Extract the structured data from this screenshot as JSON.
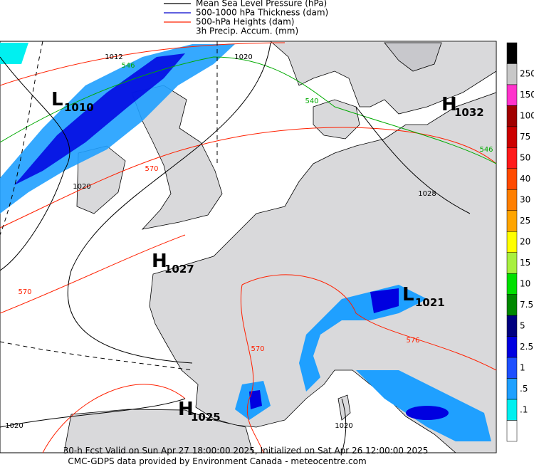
{
  "legend": [
    {
      "label": "Mean Sea Level Pressure (hPa)",
      "color": "#000000"
    },
    {
      "label": "500-1000 hPa Thickness (dam)",
      "color": "#0000cc"
    },
    {
      "label": "500-hPa Heights (dam)",
      "color": "#ff2000"
    },
    {
      "label": "3h Precip. Accum. (mm)"
    }
  ],
  "pressure_centers": [
    {
      "letter": "L",
      "value": "1010"
    },
    {
      "letter": "H",
      "value": "1032"
    },
    {
      "letter": "H",
      "value": "1027"
    },
    {
      "letter": "L",
      "value": "1021"
    },
    {
      "letter": "H",
      "value": "1025"
    }
  ],
  "contour_labels": [
    "1012",
    "546",
    "1020",
    "540",
    "546",
    "570",
    "1020",
    "1028",
    "570",
    "570",
    "576",
    "1020",
    "1020"
  ],
  "colorbar": {
    "top_color": "#000000",
    "labels": [
      "250",
      "150",
      "100",
      "75",
      "50",
      "40",
      "30",
      "25",
      "20",
      "15",
      "10",
      "7.5",
      "5",
      "2.5",
      "1",
      ".5",
      ".1"
    ],
    "colors": [
      "#c8c8c8",
      "#ff33cc",
      "#a00000",
      "#cc0000",
      "#ff1a1a",
      "#ff4a00",
      "#ff7f00",
      "#ffa500",
      "#ffff00",
      "#a8f040",
      "#00e000",
      "#008800",
      "#000080",
      "#0000e0",
      "#1e50ff",
      "#1fa0ff",
      "#00f0f0",
      "#ffffff"
    ]
  },
  "footer": {
    "line1": "30-h Fcst Valid on Sun Apr 27 18:00:00 2025, Initialized on Sat Apr 26 12:00:00 2025",
    "line2": "CMC-GDPS data provided by Environment Canada - meteocentre.com"
  }
}
